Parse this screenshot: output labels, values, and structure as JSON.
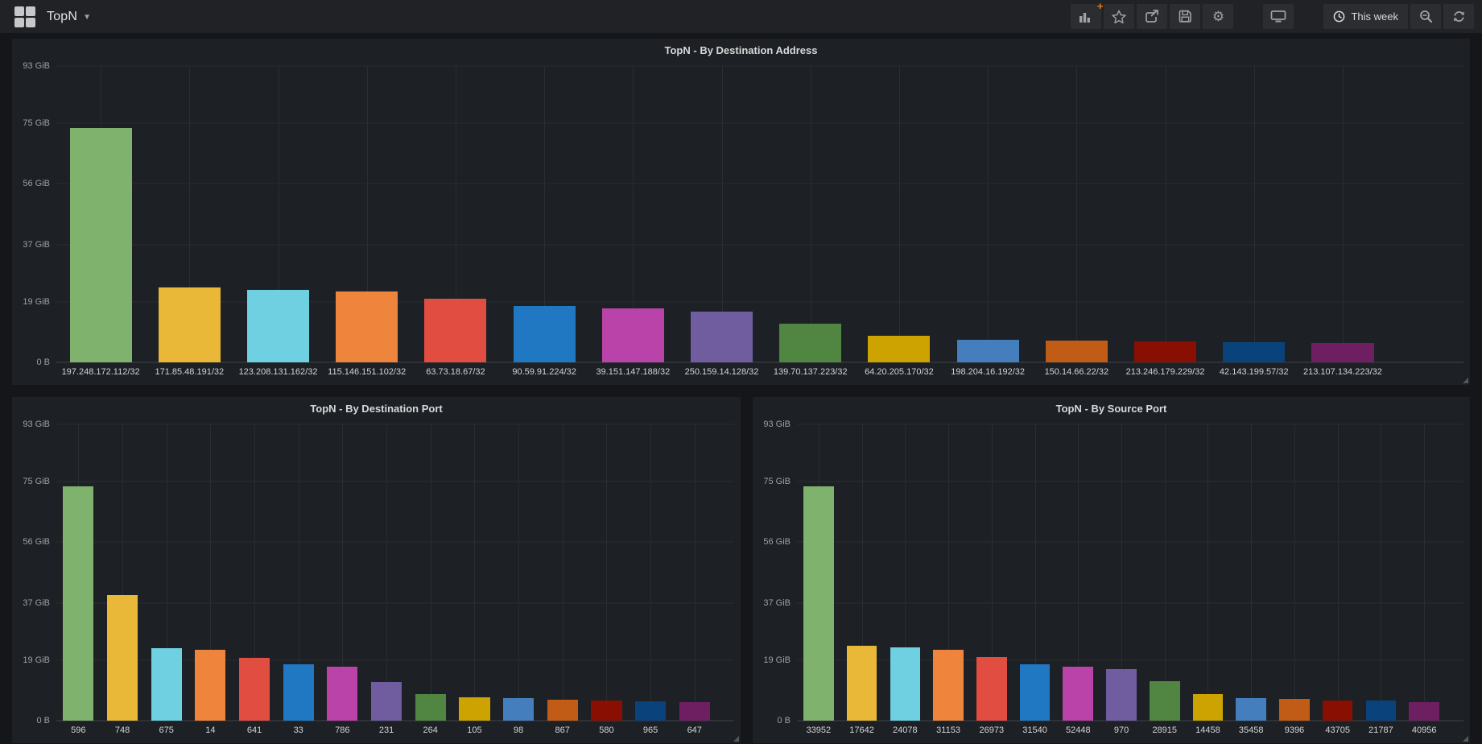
{
  "navbar": {
    "dashboard_title": "TopN",
    "time_range_label": "This week",
    "icons": [
      "apps-grid-logo",
      "caret-down",
      "add-panel-bar-chart-plus",
      "star",
      "share-export",
      "save-floppy",
      "gear-settings",
      "tv-cycle-view",
      "clock",
      "search-zoom-out",
      "refresh"
    ]
  },
  "palette": [
    "#7eb26d",
    "#eab839",
    "#6ed0e0",
    "#ef843c",
    "#e24d42",
    "#1f78c1",
    "#ba43a9",
    "#705da0",
    "#508642",
    "#cca300",
    "#447ebc",
    "#c15c17",
    "#890f02",
    "#0a437c",
    "#6d1f62"
  ],
  "chart_data": [
    {
      "type": "bar",
      "title": "TopN - By Destination Address",
      "xlabel": "",
      "ylabel": "",
      "y_unit": "GiB",
      "ylim": [
        0,
        93
      ],
      "grid": true,
      "legend": "none",
      "y_ticks": [
        "0 B",
        "19 GiB",
        "37 GiB",
        "56 GiB",
        "75 GiB",
        "93 GiB"
      ],
      "y_tick_values": [
        0,
        19,
        37,
        56,
        75,
        93
      ],
      "right_pad": 95,
      "categories": [
        "197.248.172.112/32",
        "171.85.48.191/32",
        "123.208.131.162/32",
        "115.146.151.102/32",
        "63.73.18.67/32",
        "90.59.91.224/32",
        "39.151.147.188/32",
        "250.159.14.128/32",
        "139.70.137.223/32",
        "64.20.205.170/32",
        "198.204.16.192/32",
        "150.14.66.22/32",
        "213.246.179.229/32",
        "42.143.199.57/32",
        "213.107.134.223/32"
      ],
      "values": [
        73.5,
        23.6,
        22.8,
        22.3,
        19.9,
        17.8,
        17.0,
        16.0,
        12.2,
        8.3,
        7.2,
        6.9,
        6.5,
        6.3,
        6.1
      ]
    },
    {
      "type": "bar",
      "title": "TopN - By Destination Port",
      "xlabel": "",
      "ylabel": "",
      "y_unit": "GiB",
      "ylim": [
        0,
        93
      ],
      "grid": true,
      "legend": "none",
      "y_ticks": [
        "0 B",
        "19 GiB",
        "37 GiB",
        "56 GiB",
        "75 GiB",
        "93 GiB"
      ],
      "y_tick_values": [
        0,
        19,
        37,
        56,
        75,
        93
      ],
      "right_pad": 22,
      "categories": [
        "596",
        "748",
        "675",
        "14",
        "641",
        "33",
        "786",
        "231",
        "264",
        "105",
        "98",
        "867",
        "580",
        "965",
        "647"
      ],
      "values": [
        73.5,
        39.5,
        22.8,
        22.2,
        19.8,
        17.7,
        17.0,
        12.2,
        8.3,
        7.3,
        7.1,
        6.5,
        6.3,
        6.1,
        5.7
      ]
    },
    {
      "type": "bar",
      "title": "TopN - By Source Port",
      "xlabel": "",
      "ylabel": "",
      "y_unit": "GiB",
      "ylim": [
        0,
        93
      ],
      "grid": true,
      "legend": "none",
      "y_ticks": [
        "0 B",
        "19 GiB",
        "37 GiB",
        "56 GiB",
        "75 GiB",
        "93 GiB"
      ],
      "y_tick_values": [
        0,
        19,
        37,
        56,
        75,
        93
      ],
      "right_pad": 22,
      "categories": [
        "33952",
        "17642",
        "24078",
        "31153",
        "26973",
        "31540",
        "52448",
        "970",
        "28915",
        "14458",
        "35458",
        "9396",
        "43705",
        "21787",
        "40956"
      ],
      "values": [
        73.5,
        23.4,
        22.9,
        22.3,
        19.9,
        17.8,
        17.0,
        16.3,
        12.3,
        8.3,
        7.2,
        6.9,
        6.4,
        6.2,
        5.9
      ]
    }
  ]
}
